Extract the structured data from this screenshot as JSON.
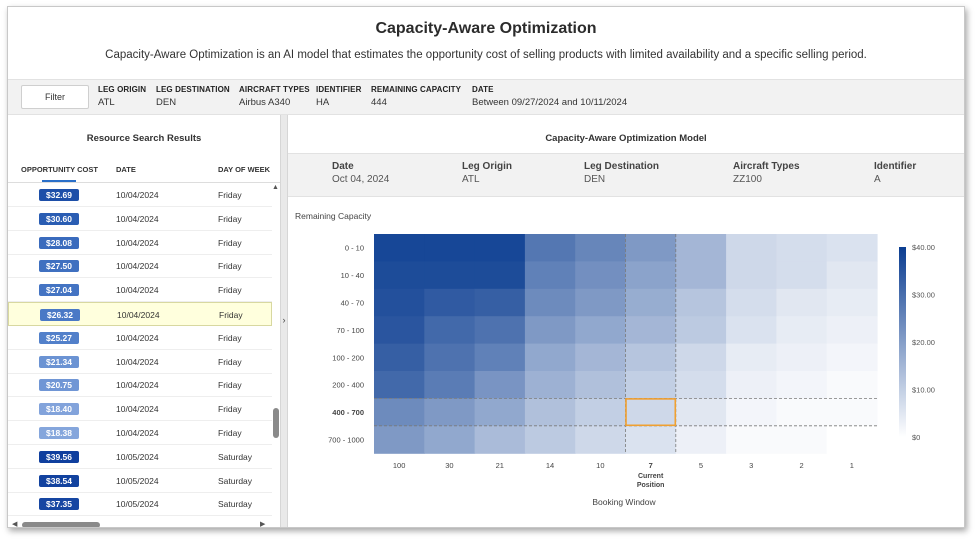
{
  "header": {
    "title": "Capacity-Aware Optimization",
    "subtitle": "Capacity-Aware Optimization is an AI model that estimates the opportunity cost of selling products with limited availability and a specific selling period."
  },
  "filterbar": {
    "filter_label": "Filter",
    "fields": [
      {
        "label": "LEG ORIGIN",
        "value": "ATL"
      },
      {
        "label": "LEG DESTINATION",
        "value": "DEN"
      },
      {
        "label": "AIRCRAFT TYPES",
        "value": "Airbus A340"
      },
      {
        "label": "IDENTIFIER",
        "value": "HA"
      },
      {
        "label": "REMAINING CAPACITY",
        "value": "444"
      },
      {
        "label": "DATE",
        "value": "Between 09/27/2024 and 10/11/2024"
      }
    ]
  },
  "results": {
    "title": "Resource Search Results",
    "columns": [
      "OPPORTUNITY COST",
      "DATE",
      "DAY OF WEEK"
    ],
    "rows": [
      {
        "cost": "$32.69",
        "date": "10/04/2024",
        "day": "Friday",
        "color": "#1d4fa8"
      },
      {
        "cost": "$30.60",
        "date": "10/04/2024",
        "day": "Friday",
        "color": "#2a5db3"
      },
      {
        "cost": "$28.08",
        "date": "10/04/2024",
        "day": "Friday",
        "color": "#3a6bbd"
      },
      {
        "cost": "$27.50",
        "date": "10/04/2024",
        "day": "Friday",
        "color": "#3f70c0"
      },
      {
        "cost": "$27.04",
        "date": "10/04/2024",
        "day": "Friday",
        "color": "#4474c3"
      },
      {
        "cost": "$26.32",
        "date": "10/04/2024",
        "day": "Friday",
        "color": "#4a79c6"
      },
      {
        "cost": "$25.27",
        "date": "10/04/2024",
        "day": "Friday",
        "color": "#5280ca"
      },
      {
        "cost": "$21.34",
        "date": "10/04/2024",
        "day": "Friday",
        "color": "#6b93d3"
      },
      {
        "cost": "$20.75",
        "date": "10/04/2024",
        "day": "Friday",
        "color": "#7096d5"
      },
      {
        "cost": "$18.40",
        "date": "10/04/2024",
        "day": "Friday",
        "color": "#82a3db"
      },
      {
        "cost": "$18.38",
        "date": "10/04/2024",
        "day": "Friday",
        "color": "#85a6dc"
      },
      {
        "cost": "$39.56",
        "date": "10/05/2024",
        "day": "Saturday",
        "color": "#0f3f9e"
      },
      {
        "cost": "$38.54",
        "date": "10/05/2024",
        "day": "Saturday",
        "color": "#12429f"
      },
      {
        "cost": "$37.35",
        "date": "10/05/2024",
        "day": "Saturday",
        "color": "#1646a2"
      }
    ]
  },
  "model": {
    "title": "Capacity-Aware Optimization Model",
    "info": [
      {
        "label": "Date",
        "value": "Oct 04, 2024"
      },
      {
        "label": "Leg Origin",
        "value": "ATL"
      },
      {
        "label": "Leg Destination",
        "value": "DEN"
      },
      {
        "label": "Aircraft Types",
        "value": "ZZ100"
      },
      {
        "label": "Identifier",
        "value": "A"
      }
    ]
  },
  "chart_data": {
    "type": "heatmap",
    "ylabel": "Remaining Capacity",
    "xlabel": "Booking Window",
    "y_categories": [
      "0 - 10",
      "10 - 40",
      "40 - 70",
      "70 - 100",
      "100 - 200",
      "200 - 400",
      "400 - 700",
      "700 - 1000"
    ],
    "x_categories": [
      "100",
      "30",
      "21",
      "14",
      "10",
      "7",
      "5",
      "3",
      "2",
      "1"
    ],
    "current_position": {
      "x": "7",
      "y": "400 - 700",
      "label_line1": "Current",
      "label_line2": "Position"
    },
    "colorbar": {
      "min": 0,
      "max": 40,
      "ticks": [
        "$40.00",
        "$30.00",
        "$20.00",
        "$10.00",
        "$0"
      ],
      "color_high": "#0b3d91",
      "color_low": "#ffffff"
    },
    "highlight_color": "#f0a030",
    "values": [
      [
        38,
        38,
        38,
        28,
        25,
        21,
        15,
        8,
        7,
        6
      ],
      [
        37,
        37,
        37,
        26,
        23,
        19,
        15,
        8,
        7,
        5
      ],
      [
        36,
        34,
        33,
        24,
        21,
        17,
        12,
        7,
        5,
        4
      ],
      [
        35,
        31,
        29,
        21,
        18,
        15,
        11,
        6,
        4,
        3
      ],
      [
        33,
        29,
        26,
        18,
        15,
        12,
        8,
        4,
        3,
        2
      ],
      [
        31,
        27,
        22,
        16,
        13,
        10,
        7,
        3,
        2,
        1
      ],
      [
        24,
        21,
        18,
        13,
        10,
        8,
        5,
        2,
        1,
        1
      ],
      [
        21,
        18,
        14,
        11,
        8,
        6,
        3,
        1,
        1,
        0
      ]
    ]
  }
}
